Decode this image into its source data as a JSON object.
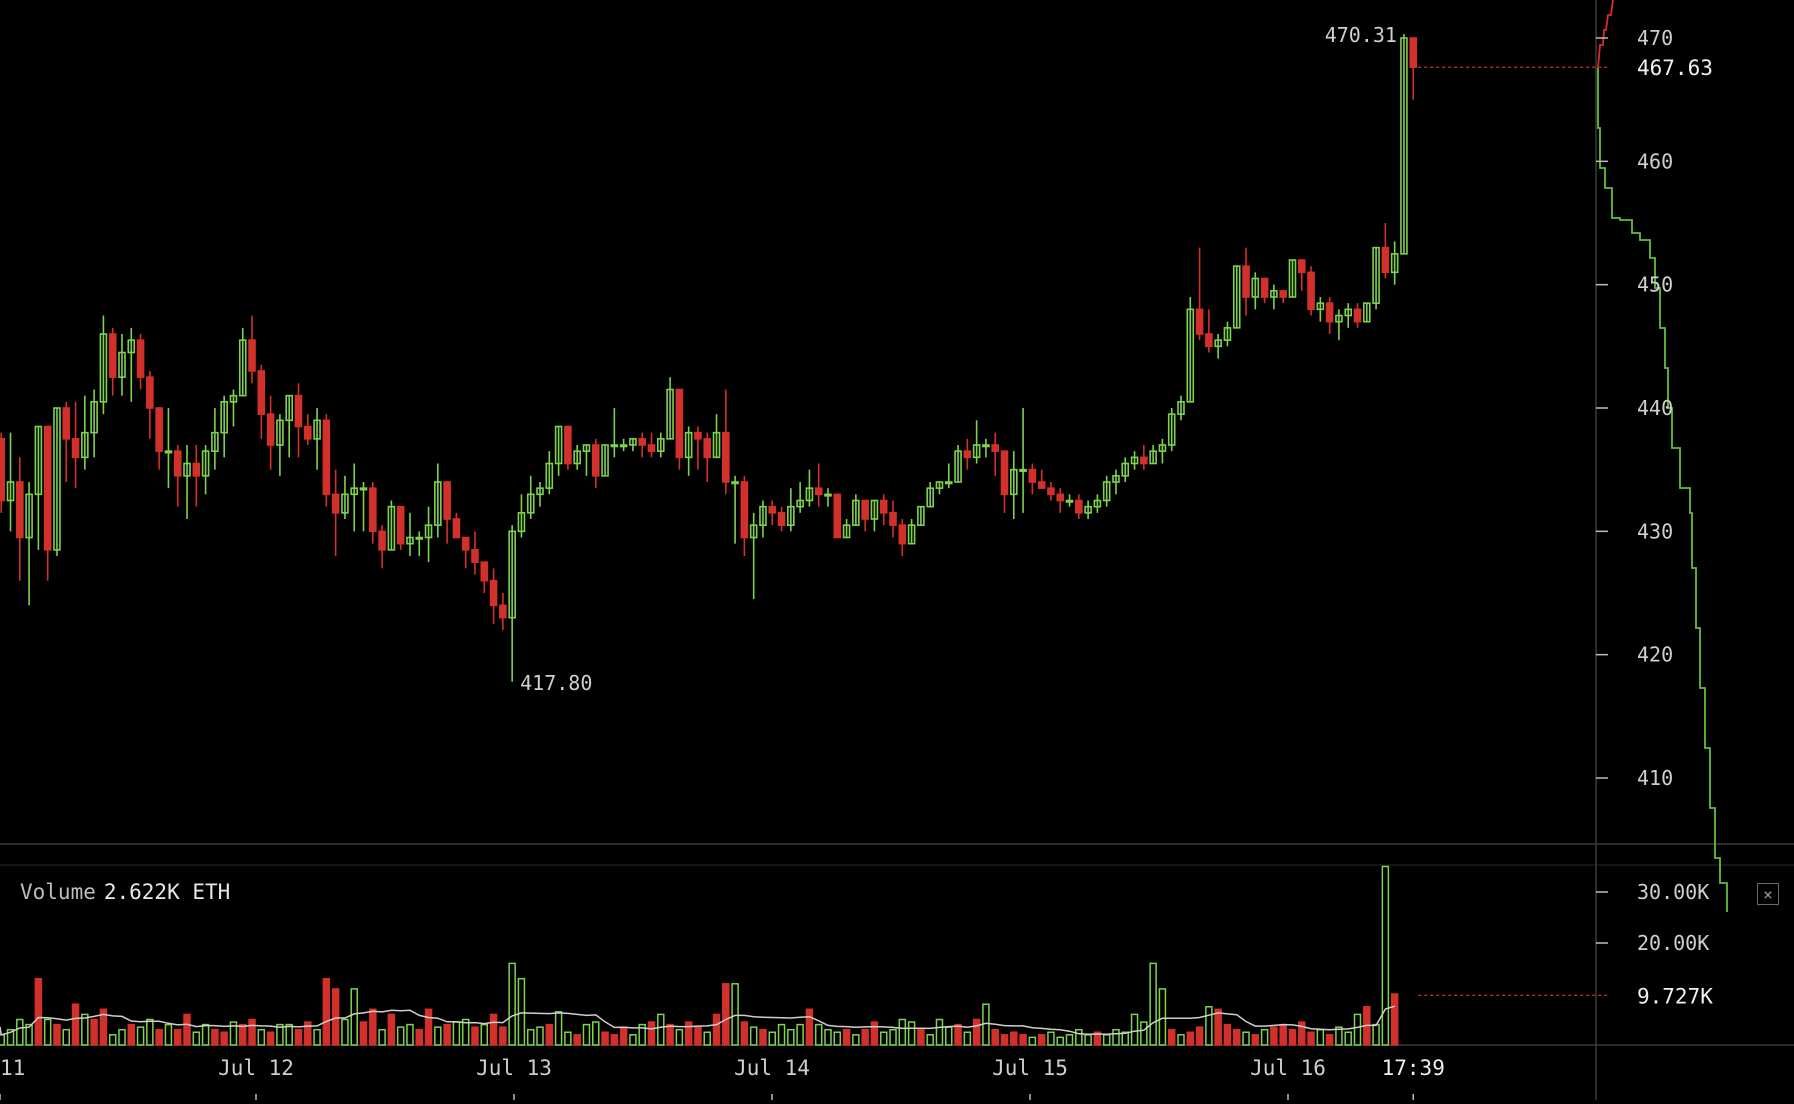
{
  "chart_data": {
    "type": "candlestick",
    "symbol_unit": "ETH",
    "colors": {
      "up": "#7ed34e",
      "down": "#d2302a",
      "grid": "#2b2b2b",
      "axis_text": "#cfcfcf",
      "ma_line": "#cfcfcf",
      "depth_line": "#5fbf3a",
      "depth_ask": "#d2302a"
    },
    "price_axis": {
      "ticks": [
        "410",
        "420",
        "430",
        "440",
        "450",
        "460",
        "470"
      ],
      "ylim": [
        404,
        472
      ],
      "last_price_label": "467.63",
      "last_price": 467.63
    },
    "volume_axis": {
      "ticks": [
        "20.00K",
        "30.00K"
      ],
      "tick_values": [
        20000,
        30000
      ],
      "ylim": [
        0,
        36000
      ],
      "last_volume_label": "9.727K",
      "last_volume": 9727
    },
    "x_axis": {
      "labels": [
        "11",
        "Jul 12",
        "Jul 13",
        "Jul 14",
        "Jul 15",
        "Jul 16",
        "17:39"
      ],
      "label_hours": [
        0,
        24,
        48,
        72,
        96,
        120,
        131.65
      ],
      "start_hour": 0.3,
      "end_hour": 131.65
    },
    "annotations": [
      {
        "text": "470.31",
        "kind": "high"
      },
      {
        "text": "417.80",
        "kind": "low"
      }
    ],
    "volume_legend": {
      "label": "Volume",
      "value": "2.622K ETH"
    },
    "candles": [
      [
        437.5,
        438.0,
        431.5,
        432.5
      ],
      [
        432.5,
        438.0,
        430.0,
        434.0
      ],
      [
        434.0,
        436.0,
        426.0,
        429.5
      ],
      [
        429.5,
        434.0,
        424.0,
        433.0
      ],
      [
        433.0,
        438.5,
        428.5,
        438.5
      ],
      [
        438.5,
        438.5,
        426.0,
        428.5
      ],
      [
        428.5,
        440.0,
        428.0,
        440.0
      ],
      [
        440.0,
        440.5,
        434.0,
        437.5
      ],
      [
        437.5,
        440.5,
        433.5,
        436.0
      ],
      [
        436.0,
        441.0,
        435.0,
        438.0
      ],
      [
        438.0,
        441.5,
        436.0,
        440.5
      ],
      [
        440.5,
        447.5,
        439.5,
        446.0
      ],
      [
        446.0,
        446.5,
        441.0,
        442.5
      ],
      [
        442.5,
        446.0,
        441.0,
        444.5
      ],
      [
        444.5,
        446.5,
        440.5,
        445.5
      ],
      [
        445.5,
        446.0,
        441.5,
        442.5
      ],
      [
        442.5,
        443.0,
        437.5,
        440.0
      ],
      [
        440.0,
        440.0,
        435.0,
        436.5
      ],
      [
        436.5,
        440.0,
        433.5,
        436.5
      ],
      [
        436.5,
        437.0,
        432.0,
        434.5
      ],
      [
        434.5,
        437.0,
        431.0,
        435.5
      ],
      [
        435.5,
        437.0,
        432.0,
        434.5
      ],
      [
        434.5,
        437.0,
        433.0,
        436.5
      ],
      [
        436.5,
        440.0,
        435.0,
        438.0
      ],
      [
        438.0,
        441.0,
        436.0,
        440.5
      ],
      [
        440.5,
        441.5,
        438.5,
        441.0
      ],
      [
        441.0,
        446.5,
        441.0,
        445.5
      ],
      [
        445.5,
        447.5,
        442.0,
        443.0
      ],
      [
        443.0,
        443.5,
        437.5,
        439.5
      ],
      [
        439.5,
        441.0,
        435.0,
        437.0
      ],
      [
        437.0,
        439.5,
        434.5,
        439.0
      ],
      [
        439.0,
        441.0,
        436.0,
        441.0
      ],
      [
        441.0,
        442.0,
        436.0,
        438.5
      ],
      [
        438.5,
        439.5,
        437.0,
        437.5
      ],
      [
        437.5,
        440.0,
        435.0,
        439.0
      ],
      [
        439.0,
        439.5,
        432.0,
        433.0
      ],
      [
        433.0,
        435.0,
        428.0,
        431.5
      ],
      [
        431.5,
        434.5,
        431.0,
        433.0
      ],
      [
        433.0,
        435.5,
        430.0,
        433.5
      ],
      [
        433.5,
        434.0,
        430.0,
        433.5
      ],
      [
        433.5,
        434.0,
        429.0,
        430.0
      ],
      [
        430.0,
        430.5,
        427.0,
        428.5
      ],
      [
        428.5,
        432.5,
        428.5,
        432.0
      ],
      [
        432.0,
        432.0,
        428.5,
        429.0
      ],
      [
        429.0,
        431.5,
        428.0,
        429.5
      ],
      [
        429.5,
        430.0,
        428.0,
        429.5
      ],
      [
        429.5,
        432.0,
        427.5,
        430.5
      ],
      [
        430.5,
        435.5,
        429.5,
        434.0
      ],
      [
        434.0,
        434.0,
        429.0,
        431.0
      ],
      [
        431.0,
        431.5,
        429.5,
        429.5
      ],
      [
        429.5,
        429.5,
        427.0,
        428.5
      ],
      [
        428.5,
        430.0,
        426.5,
        427.5
      ],
      [
        427.5,
        427.5,
        425.0,
        426.0
      ],
      [
        426.0,
        427.0,
        422.5,
        424.0
      ],
      [
        424.0,
        425.0,
        422.0,
        423.0
      ],
      [
        423.0,
        430.5,
        417.8,
        430.0
      ],
      [
        430.0,
        433.0,
        429.5,
        431.5
      ],
      [
        431.5,
        434.5,
        431.0,
        433.0
      ],
      [
        433.0,
        434.0,
        432.0,
        433.5
      ],
      [
        433.5,
        436.5,
        433.0,
        435.5
      ],
      [
        435.5,
        438.5,
        434.5,
        438.5
      ],
      [
        438.5,
        438.5,
        435.0,
        435.5
      ],
      [
        435.5,
        437.0,
        435.0,
        436.5
      ],
      [
        436.5,
        437.0,
        434.5,
        437.0
      ],
      [
        437.0,
        437.5,
        433.5,
        434.5
      ],
      [
        434.5,
        437.0,
        434.5,
        437.0
      ],
      [
        437.0,
        440.0,
        436.0,
        437.0
      ],
      [
        437.0,
        437.5,
        436.5,
        437.0
      ],
      [
        437.0,
        437.5,
        436.5,
        437.5
      ],
      [
        437.5,
        438.0,
        436.0,
        437.0
      ],
      [
        437.0,
        438.0,
        436.0,
        436.5
      ],
      [
        436.5,
        438.0,
        436.0,
        437.5
      ],
      [
        437.5,
        442.5,
        437.5,
        441.5
      ],
      [
        441.5,
        441.5,
        435.0,
        436.0
      ],
      [
        436.0,
        438.5,
        434.5,
        438.0
      ],
      [
        438.0,
        438.5,
        435.0,
        437.5
      ],
      [
        437.5,
        438.0,
        434.0,
        436.0
      ],
      [
        436.0,
        439.5,
        436.0,
        438.0
      ],
      [
        438.0,
        441.5,
        433.0,
        434.0
      ],
      [
        434.0,
        434.5,
        429.0,
        434.0
      ],
      [
        434.0,
        434.5,
        428.0,
        429.5
      ],
      [
        429.5,
        431.5,
        424.5,
        430.5
      ],
      [
        430.5,
        432.5,
        429.5,
        432.0
      ],
      [
        432.0,
        432.5,
        430.5,
        431.5
      ],
      [
        431.5,
        432.0,
        430.0,
        430.5
      ],
      [
        430.5,
        433.5,
        430.0,
        432.0
      ],
      [
        432.0,
        434.0,
        431.5,
        432.5
      ],
      [
        432.5,
        435.0,
        432.0,
        433.5
      ],
      [
        433.5,
        435.5,
        432.0,
        433.0
      ],
      [
        433.0,
        433.5,
        432.0,
        433.0
      ],
      [
        433.0,
        433.0,
        429.5,
        429.5
      ],
      [
        429.5,
        431.0,
        429.5,
        430.5
      ],
      [
        430.5,
        433.0,
        430.5,
        432.5
      ],
      [
        432.5,
        432.5,
        430.0,
        431.0
      ],
      [
        431.0,
        432.5,
        430.0,
        432.5
      ],
      [
        432.5,
        433.0,
        430.5,
        431.5
      ],
      [
        431.5,
        432.5,
        429.5,
        430.5
      ],
      [
        430.5,
        431.0,
        428.0,
        429.0
      ],
      [
        429.0,
        431.0,
        429.0,
        430.5
      ],
      [
        430.5,
        432.0,
        430.5,
        432.0
      ],
      [
        432.0,
        434.0,
        432.0,
        433.5
      ],
      [
        433.5,
        434.0,
        433.0,
        434.0
      ],
      [
        434.0,
        435.5,
        433.5,
        434.0
      ],
      [
        434.0,
        437.0,
        434.0,
        436.5
      ],
      [
        436.5,
        437.5,
        435.0,
        436.0
      ],
      [
        436.0,
        439.0,
        435.5,
        437.0
      ],
      [
        437.0,
        437.5,
        436.0,
        437.0
      ],
      [
        437.0,
        438.0,
        434.5,
        436.5
      ],
      [
        436.5,
        436.5,
        431.5,
        433.0
      ],
      [
        433.0,
        436.5,
        431.0,
        435.0
      ],
      [
        435.0,
        440.0,
        431.5,
        435.0
      ],
      [
        435.0,
        435.5,
        433.0,
        434.0
      ],
      [
        434.0,
        435.0,
        433.5,
        433.5
      ],
      [
        433.5,
        434.0,
        432.5,
        433.0
      ],
      [
        433.0,
        433.5,
        431.5,
        432.5
      ],
      [
        432.5,
        433.0,
        432.0,
        432.5
      ],
      [
        432.5,
        433.0,
        431.0,
        431.5
      ],
      [
        431.5,
        432.5,
        431.0,
        432.0
      ],
      [
        432.0,
        433.0,
        431.5,
        432.5
      ],
      [
        432.5,
        434.5,
        432.0,
        434.0
      ],
      [
        434.0,
        435.0,
        433.0,
        434.5
      ],
      [
        434.5,
        436.0,
        434.0,
        435.5
      ],
      [
        435.5,
        436.5,
        435.0,
        436.0
      ],
      [
        436.0,
        437.0,
        435.0,
        435.5
      ],
      [
        435.5,
        437.0,
        435.5,
        436.5
      ],
      [
        436.5,
        437.5,
        435.5,
        437.0
      ],
      [
        437.0,
        440.0,
        436.5,
        439.5
      ],
      [
        439.5,
        441.0,
        439.0,
        440.5
      ],
      [
        440.5,
        449.0,
        440.5,
        448.0
      ],
      [
        448.0,
        453.0,
        445.5,
        446.0
      ],
      [
        446.0,
        448.0,
        444.5,
        445.0
      ],
      [
        445.0,
        446.0,
        444.0,
        445.5
      ],
      [
        445.5,
        447.0,
        445.0,
        446.5
      ],
      [
        446.5,
        451.5,
        446.5,
        451.5
      ],
      [
        451.5,
        453.0,
        447.5,
        449.0
      ],
      [
        449.0,
        451.0,
        448.0,
        450.5
      ],
      [
        450.5,
        450.5,
        448.5,
        449.0
      ],
      [
        449.0,
        450.0,
        448.0,
        449.5
      ],
      [
        449.5,
        449.5,
        448.5,
        449.0
      ],
      [
        449.0,
        452.0,
        449.0,
        452.0
      ],
      [
        452.0,
        452.0,
        449.5,
        451.0
      ],
      [
        451.0,
        451.5,
        447.5,
        448.0
      ],
      [
        448.0,
        449.0,
        447.0,
        448.5
      ],
      [
        448.5,
        449.0,
        446.0,
        447.0
      ],
      [
        447.0,
        448.0,
        445.5,
        447.5
      ],
      [
        447.5,
        448.5,
        446.5,
        448.0
      ],
      [
        448.0,
        448.5,
        446.5,
        447.0
      ],
      [
        447.0,
        448.5,
        447.0,
        448.5
      ],
      [
        448.5,
        453.0,
        448.0,
        453.0
      ],
      [
        453.0,
        455.0,
        450.5,
        451.0
      ],
      [
        451.0,
        453.5,
        450.0,
        452.5
      ],
      [
        452.5,
        470.31,
        452.5,
        470.0
      ],
      [
        470.0,
        470.0,
        465.0,
        467.63
      ]
    ],
    "volumes": [
      [
        2000,
        1
      ],
      [
        3000,
        1
      ],
      [
        5000,
        1
      ],
      [
        4000,
        1
      ],
      [
        13000,
        0
      ],
      [
        5000,
        1
      ],
      [
        4000,
        0
      ],
      [
        3000,
        1
      ],
      [
        8000,
        0
      ],
      [
        6000,
        1
      ],
      [
        5000,
        0
      ],
      [
        7000,
        0
      ],
      [
        2000,
        1
      ],
      [
        3000,
        1
      ],
      [
        4000,
        0
      ],
      [
        3500,
        1
      ],
      [
        5000,
        1
      ],
      [
        3000,
        0
      ],
      [
        4000,
        1
      ],
      [
        3000,
        0
      ],
      [
        6000,
        0
      ],
      [
        2500,
        1
      ],
      [
        4000,
        1
      ],
      [
        3000,
        0
      ],
      [
        2500,
        0
      ],
      [
        4500,
        1
      ],
      [
        4000,
        0
      ],
      [
        5000,
        0
      ],
      [
        3000,
        1
      ],
      [
        2500,
        0
      ],
      [
        4000,
        1
      ],
      [
        4000,
        1
      ],
      [
        3000,
        0
      ],
      [
        4500,
        0
      ],
      [
        3000,
        1
      ],
      [
        13000,
        0
      ],
      [
        11000,
        0
      ],
      [
        5000,
        1
      ],
      [
        11000,
        1
      ],
      [
        4500,
        0
      ],
      [
        7000,
        0
      ],
      [
        3000,
        1
      ],
      [
        6000,
        0
      ],
      [
        3500,
        1
      ],
      [
        4000,
        1
      ],
      [
        3000,
        0
      ],
      [
        7000,
        0
      ],
      [
        3500,
        1
      ],
      [
        4000,
        0
      ],
      [
        4500,
        1
      ],
      [
        5000,
        1
      ],
      [
        3500,
        0
      ],
      [
        4000,
        1
      ],
      [
        6000,
        0
      ],
      [
        3500,
        0
      ],
      [
        16000,
        1
      ],
      [
        13000,
        1
      ],
      [
        3000,
        1
      ],
      [
        3500,
        1
      ],
      [
        4000,
        0
      ],
      [
        6500,
        1
      ],
      [
        2500,
        1
      ],
      [
        2000,
        0
      ],
      [
        4000,
        1
      ],
      [
        4500,
        1
      ],
      [
        2500,
        0
      ],
      [
        2000,
        0
      ],
      [
        3500,
        0
      ],
      [
        2000,
        1
      ],
      [
        4000,
        1
      ],
      [
        4500,
        0
      ],
      [
        6000,
        1
      ],
      [
        4000,
        0
      ],
      [
        3000,
        1
      ],
      [
        4500,
        0
      ],
      [
        3500,
        0
      ],
      [
        2500,
        1
      ],
      [
        6000,
        0
      ],
      [
        12000,
        0
      ],
      [
        12000,
        1
      ],
      [
        4500,
        0
      ],
      [
        3500,
        1
      ],
      [
        3000,
        0
      ],
      [
        2500,
        1
      ],
      [
        4000,
        1
      ],
      [
        3000,
        1
      ],
      [
        4000,
        1
      ],
      [
        7000,
        0
      ],
      [
        4000,
        1
      ],
      [
        3000,
        1
      ],
      [
        2500,
        1
      ],
      [
        3000,
        0
      ],
      [
        2000,
        1
      ],
      [
        3000,
        0
      ],
      [
        4500,
        0
      ],
      [
        2500,
        1
      ],
      [
        3000,
        1
      ],
      [
        5000,
        1
      ],
      [
        4500,
        1
      ],
      [
        3000,
        0
      ],
      [
        2000,
        1
      ],
      [
        5000,
        1
      ],
      [
        3500,
        1
      ],
      [
        4000,
        0
      ],
      [
        2500,
        1
      ],
      [
        5000,
        0
      ],
      [
        8000,
        1
      ],
      [
        3000,
        0
      ],
      [
        2000,
        0
      ],
      [
        2500,
        0
      ],
      [
        2000,
        0
      ],
      [
        1500,
        1
      ],
      [
        2000,
        0
      ],
      [
        2500,
        1
      ],
      [
        1500,
        1
      ],
      [
        2000,
        1
      ],
      [
        3000,
        1
      ],
      [
        2000,
        1
      ],
      [
        2500,
        0
      ],
      [
        2000,
        1
      ],
      [
        3000,
        1
      ],
      [
        2500,
        1
      ],
      [
        6000,
        1
      ],
      [
        4500,
        1
      ],
      [
        16000,
        1
      ],
      [
        11000,
        1
      ],
      [
        3000,
        0
      ],
      [
        2000,
        1
      ],
      [
        2500,
        0
      ],
      [
        3500,
        0
      ],
      [
        7500,
        1
      ],
      [
        7000,
        0
      ],
      [
        4000,
        0
      ],
      [
        3000,
        0
      ],
      [
        2500,
        1
      ],
      [
        2000,
        0
      ],
      [
        3000,
        1
      ],
      [
        3500,
        0
      ],
      [
        4000,
        0
      ],
      [
        3000,
        0
      ],
      [
        4500,
        0
      ],
      [
        2500,
        0
      ],
      [
        3000,
        1
      ],
      [
        2000,
        0
      ],
      [
        3500,
        1
      ],
      [
        2500,
        1
      ],
      [
        6000,
        1
      ],
      [
        7500,
        0
      ],
      [
        4000,
        1
      ],
      [
        35000,
        1
      ],
      [
        10000,
        0
      ]
    ]
  }
}
